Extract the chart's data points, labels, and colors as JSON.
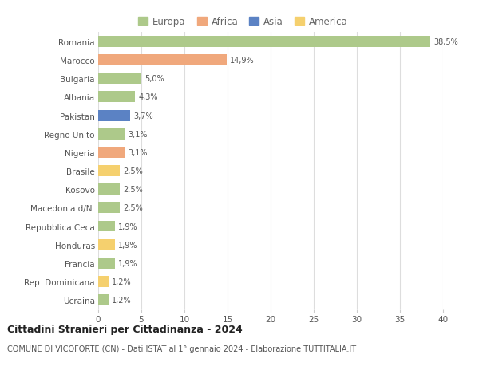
{
  "countries": [
    "Romania",
    "Marocco",
    "Bulgaria",
    "Albania",
    "Pakistan",
    "Regno Unito",
    "Nigeria",
    "Brasile",
    "Kosovo",
    "Macedonia d/N.",
    "Repubblica Ceca",
    "Honduras",
    "Francia",
    "Rep. Dominicana",
    "Ucraina"
  ],
  "values": [
    38.5,
    14.9,
    5.0,
    4.3,
    3.7,
    3.1,
    3.1,
    2.5,
    2.5,
    2.5,
    1.9,
    1.9,
    1.9,
    1.2,
    1.2
  ],
  "labels": [
    "38,5%",
    "14,9%",
    "5,0%",
    "4,3%",
    "3,7%",
    "3,1%",
    "3,1%",
    "2,5%",
    "2,5%",
    "2,5%",
    "1,9%",
    "1,9%",
    "1,9%",
    "1,2%",
    "1,2%"
  ],
  "continents": [
    "Europa",
    "Africa",
    "Europa",
    "Europa",
    "Asia",
    "Europa",
    "Africa",
    "America",
    "Europa",
    "Europa",
    "Europa",
    "America",
    "Europa",
    "America",
    "Europa"
  ],
  "colors": {
    "Europa": "#adc98a",
    "Africa": "#f0a87c",
    "Asia": "#5b82c4",
    "America": "#f5d06e"
  },
  "legend_order": [
    "Europa",
    "Africa",
    "Asia",
    "America"
  ],
  "title": "Cittadini Stranieri per Cittadinanza - 2024",
  "subtitle": "COMUNE DI VICOFORTE (CN) - Dati ISTAT al 1° gennaio 2024 - Elaborazione TUTTITALIA.IT",
  "xlim": [
    0,
    40
  ],
  "xticks": [
    0,
    5,
    10,
    15,
    20,
    25,
    30,
    35,
    40
  ],
  "bg_color": "#ffffff",
  "grid_color": "#dddddd",
  "bar_height": 0.6
}
